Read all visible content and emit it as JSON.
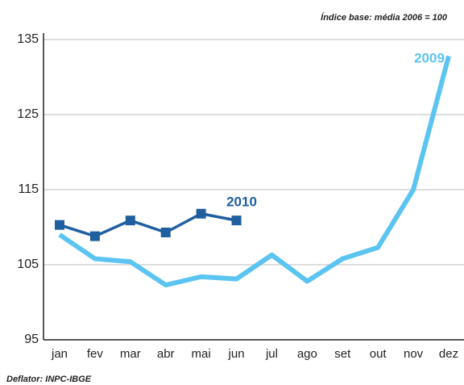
{
  "chart_data": {
    "type": "line",
    "annotations": [
      "Índice base: média 2006 = 100",
      "Deflator: INPC-IBGE"
    ],
    "categories": [
      "jan",
      "fev",
      "mar",
      "abr",
      "mai",
      "jun",
      "jul",
      "ago",
      "set",
      "out",
      "nov",
      "dez"
    ],
    "series": [
      {
        "name": "2009",
        "color": "#5bc4f1",
        "marker": "none",
        "values": [
          109,
          105.8,
          105.4,
          102.3,
          103.4,
          103.1,
          106.3,
          102.8,
          105.8,
          107.3,
          115,
          132.8
        ]
      },
      {
        "name": "2010",
        "color": "#1f5fa0",
        "marker": "square",
        "values": [
          110.3,
          108.8,
          110.9,
          109.3,
          111.8,
          110.9,
          null,
          null,
          null,
          null,
          null,
          null
        ]
      }
    ],
    "ylim": [
      95,
      135
    ],
    "yticks": [
      95,
      105,
      115,
      125,
      135
    ],
    "grid": true
  }
}
